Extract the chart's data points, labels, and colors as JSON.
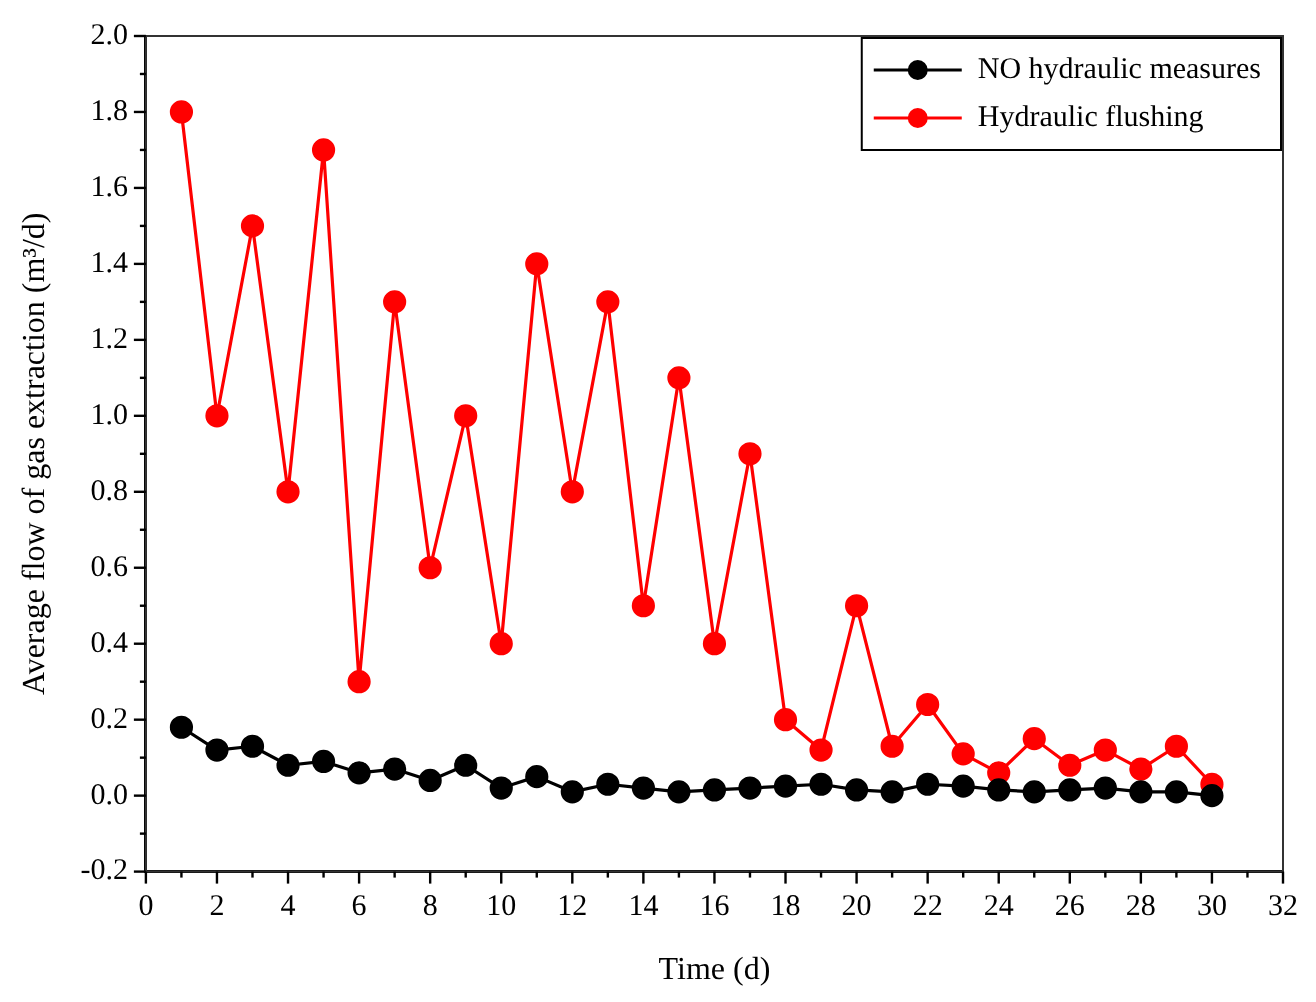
{
  "chart_data": {
    "type": "line",
    "xlabel": "Time (d)",
    "ylabel": "Average flow of gas extraction (m³/d)",
    "x": [
      1,
      2,
      3,
      4,
      5,
      6,
      7,
      8,
      9,
      10,
      11,
      12,
      13,
      14,
      15,
      16,
      17,
      18,
      19,
      20,
      21,
      22,
      23,
      24,
      25,
      26,
      27,
      28,
      29,
      30
    ],
    "series": [
      {
        "name": "NO hydraulic measures",
        "color": "#000000",
        "values": [
          0.18,
          0.12,
          0.13,
          0.08,
          0.09,
          0.06,
          0.07,
          0.04,
          0.08,
          0.02,
          0.05,
          0.01,
          0.03,
          0.02,
          0.01,
          0.015,
          0.02,
          0.025,
          0.03,
          0.015,
          0.01,
          0.03,
          0.025,
          0.015,
          0.01,
          0.015,
          0.02,
          0.01,
          0.01,
          0.0
        ]
      },
      {
        "name": "Hydraulic flushing",
        "color": "#ff0000",
        "values": [
          1.8,
          1.0,
          1.5,
          0.8,
          1.7,
          0.3,
          1.3,
          0.6,
          1.0,
          0.4,
          1.4,
          0.8,
          1.3,
          0.5,
          1.1,
          0.4,
          0.9,
          0.2,
          0.12,
          0.5,
          0.13,
          0.24,
          0.11,
          0.06,
          0.15,
          0.08,
          0.12,
          0.07,
          0.13,
          0.03
        ]
      }
    ],
    "xlim": [
      0,
      32
    ],
    "xticks": [
      0,
      {
        "value": 1,
        "label": null
      },
      2,
      {
        "value": 3,
        "label": null
      },
      4,
      {
        "value": 5,
        "label": null
      },
      6,
      {
        "value": 7,
        "label": null
      },
      8,
      {
        "value": 9,
        "label": null
      },
      10,
      {
        "value": 11,
        "label": null
      },
      12,
      {
        "value": 13,
        "label": null
      },
      14,
      {
        "value": 15,
        "label": null
      },
      16,
      {
        "value": 17,
        "label": null
      },
      18,
      {
        "value": 19,
        "label": null
      },
      20,
      {
        "value": 21,
        "label": null
      },
      22,
      {
        "value": 23,
        "label": null
      },
      24,
      {
        "value": 25,
        "label": null
      },
      26,
      {
        "value": 27,
        "label": null
      },
      28,
      {
        "value": 29,
        "label": null
      },
      30,
      {
        "value": 31,
        "label": null
      },
      32
    ],
    "ylim": [
      -0.2,
      2.0
    ],
    "yticks": [
      -0.2,
      {
        "value": -0.1,
        "label": null
      },
      {
        "value": 0,
        "label": "0.0"
      },
      {
        "value": 0.1,
        "label": null
      },
      0.2,
      {
        "value": 0.3,
        "label": null
      },
      0.4,
      {
        "value": 0.5,
        "label": null
      },
      0.6,
      {
        "value": 0.7,
        "label": null
      },
      0.8,
      {
        "value": 0.9,
        "label": null
      },
      {
        "value": 1.0,
        "label": "1.0"
      },
      {
        "value": 1.1,
        "label": null
      },
      1.2,
      {
        "value": 1.3,
        "label": null
      },
      1.4,
      {
        "value": 1.5,
        "label": null
      },
      1.6,
      {
        "value": 1.7,
        "label": null
      },
      1.8,
      {
        "value": 1.9,
        "label": null
      },
      {
        "value": 2.0,
        "label": "2.0"
      }
    ],
    "grid": false,
    "legend": "top right",
    "marker": "circle",
    "line_style": "solid"
  }
}
